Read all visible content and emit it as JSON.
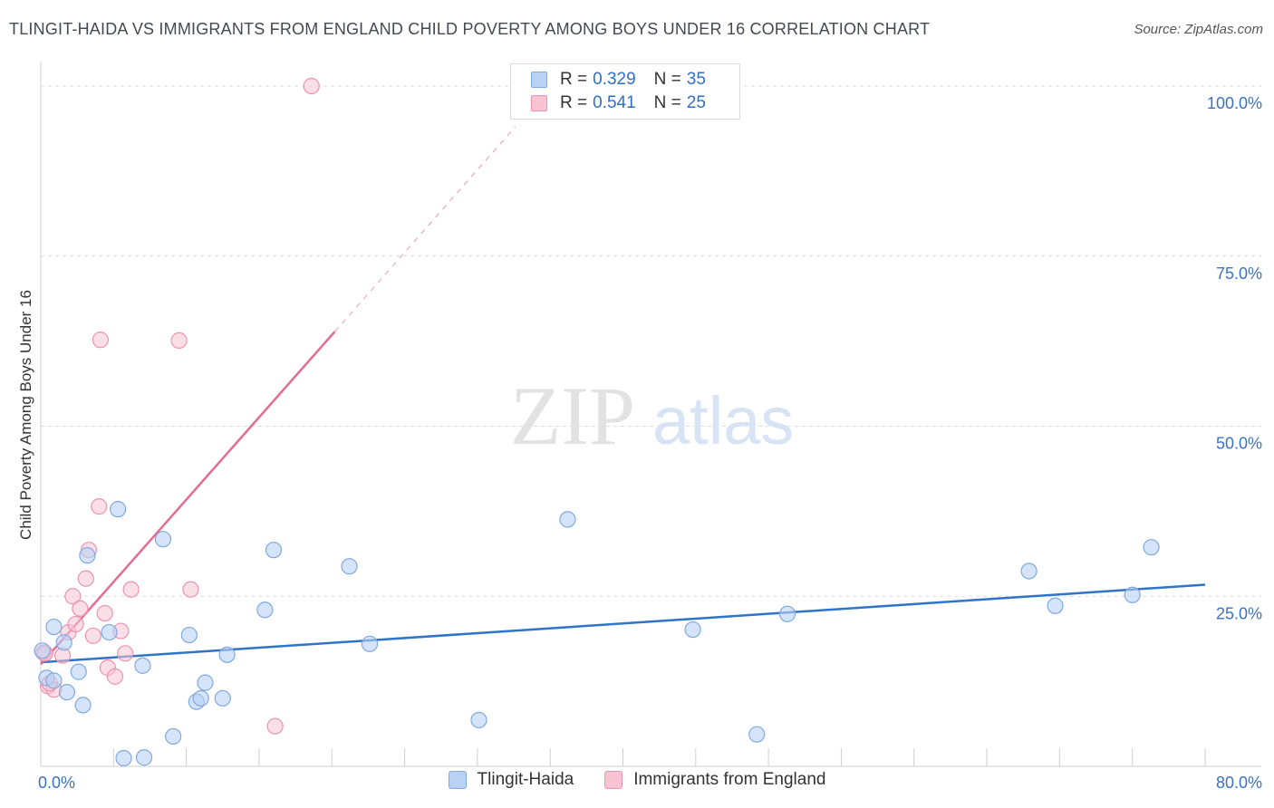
{
  "header": {
    "title": "TLINGIT-HAIDA VS IMMIGRANTS FROM ENGLAND CHILD POVERTY AMONG BOYS UNDER 16 CORRELATION CHART",
    "source": "Source: ZipAtlas.com"
  },
  "watermark": {
    "zip": "ZIP",
    "atlas": "atlas"
  },
  "legend": {
    "rows": [
      {
        "r_label": "R =",
        "r_value": "0.329",
        "n_label": "N =",
        "n_value": "35"
      },
      {
        "r_label": "R =",
        "r_value": "0.541",
        "n_label": "N =",
        "n_value": "25"
      }
    ]
  },
  "colors": {
    "blue_fill": "#b9d2f3",
    "blue_stroke": "#7fa9e0",
    "blue_line": "#2f74c8",
    "pink_fill": "#f8c4d4",
    "pink_stroke": "#ec93b0",
    "pink_line": "#e36c95",
    "tick_text": "#3b72c4",
    "grid": "#dcdcdc"
  },
  "chart_data": {
    "type": "scatter",
    "title": "TLINGIT-HAIDA VS IMMIGRANTS FROM ENGLAND CHILD POVERTY AMONG BOYS UNDER 16 CORRELATION CHART",
    "xlabel": "",
    "ylabel": "Child Poverty Among Boys Under 16",
    "xlim": [
      0,
      80
    ],
    "ylim": [
      0,
      102
    ],
    "x_tick_labels": [
      "0.0%",
      "80.0%"
    ],
    "y_ticks": [
      25,
      50,
      75,
      100
    ],
    "y_tick_labels": [
      "25.0%",
      "50.0%",
      "75.0%",
      "100.0%"
    ],
    "grid": true,
    "legend_position": "top-center",
    "series": [
      {
        "name": "Tlingit-Haida",
        "color": "#b9d2f3",
        "r": 0.329,
        "n": 35,
        "trend": {
          "x": [
            0,
            80
          ],
          "y": [
            15.3,
            26.7
          ]
        },
        "points": [
          [
            0.1,
            17.0
          ],
          [
            0.4,
            13.0
          ],
          [
            0.9,
            20.5
          ],
          [
            0.9,
            12.6
          ],
          [
            1.6,
            18.2
          ],
          [
            1.8,
            10.9
          ],
          [
            2.6,
            13.9
          ],
          [
            3.2,
            31.0
          ],
          [
            2.9,
            9.0
          ],
          [
            4.7,
            19.7
          ],
          [
            5.3,
            37.8
          ],
          [
            5.7,
            1.2
          ],
          [
            7.1,
            1.3
          ],
          [
            7.0,
            14.8
          ],
          [
            8.4,
            33.4
          ],
          [
            9.1,
            4.4
          ],
          [
            10.2,
            19.3
          ],
          [
            10.7,
            9.5
          ],
          [
            11.0,
            10.0
          ],
          [
            11.3,
            12.3
          ],
          [
            12.5,
            10.0
          ],
          [
            12.8,
            16.4
          ],
          [
            15.4,
            23.0
          ],
          [
            16.0,
            31.8
          ],
          [
            21.2,
            29.4
          ],
          [
            22.6,
            18.0
          ],
          [
            30.1,
            6.8
          ],
          [
            36.2,
            36.3
          ],
          [
            44.8,
            20.1
          ],
          [
            49.2,
            4.7
          ],
          [
            51.3,
            22.4
          ],
          [
            67.9,
            28.7
          ],
          [
            69.7,
            23.6
          ],
          [
            75.0,
            25.2
          ],
          [
            76.3,
            32.2
          ]
        ]
      },
      {
        "name": "Immigrants from England",
        "color": "#f8c4d4",
        "r": 0.541,
        "n": 25,
        "trend": {
          "x": [
            0,
            20.2
          ],
          "y": [
            15.0,
            63.9
          ]
        },
        "trend_ext": {
          "x": [
            20.2,
            32.6
          ],
          "y": [
            63.9,
            94.0
          ]
        },
        "points": [
          [
            0.2,
            16.7
          ],
          [
            0.5,
            11.8
          ],
          [
            0.9,
            11.3
          ],
          [
            0.6,
            12.2
          ],
          [
            1.5,
            16.3
          ],
          [
            1.9,
            19.7
          ],
          [
            2.2,
            25.0
          ],
          [
            2.4,
            20.9
          ],
          [
            2.7,
            23.2
          ],
          [
            3.1,
            27.6
          ],
          [
            3.3,
            31.8
          ],
          [
            3.6,
            19.2
          ],
          [
            4.0,
            38.2
          ],
          [
            4.1,
            62.7
          ],
          [
            4.4,
            22.5
          ],
          [
            4.6,
            14.5
          ],
          [
            5.1,
            13.2
          ],
          [
            5.5,
            19.9
          ],
          [
            5.8,
            16.6
          ],
          [
            6.2,
            26.0
          ],
          [
            9.5,
            62.6
          ],
          [
            10.3,
            26.0
          ],
          [
            16.1,
            5.9
          ],
          [
            18.6,
            100.0
          ],
          [
            0.3,
            16.6
          ]
        ]
      }
    ]
  },
  "bottom_legend": {
    "items": [
      {
        "label": "Tlingit-Haida"
      },
      {
        "label": "Immigrants from England"
      }
    ]
  }
}
